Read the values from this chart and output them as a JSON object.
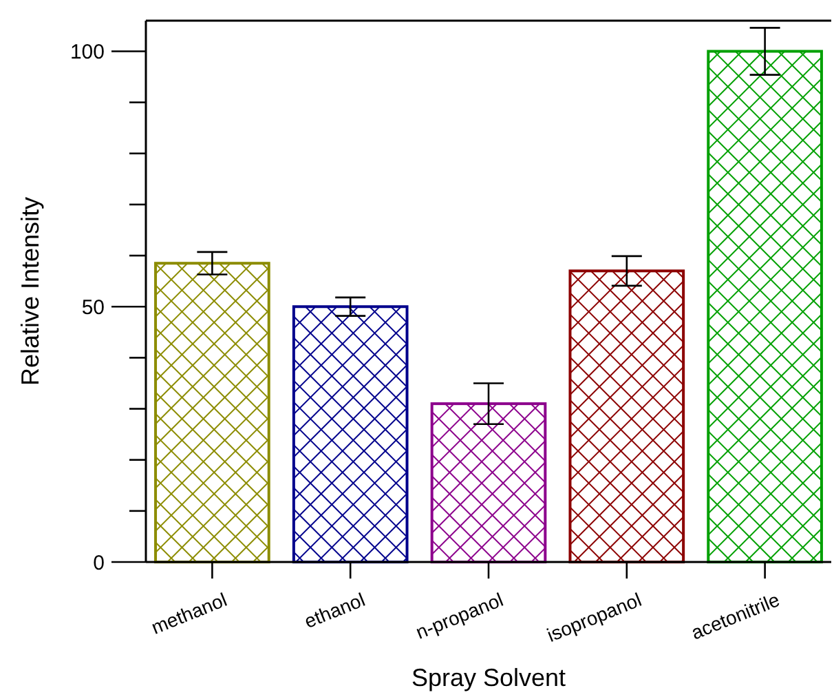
{
  "chart_data": {
    "type": "bar",
    "xlabel": "Spray Solvent",
    "ylabel": "Relative Intensity",
    "categories": [
      "methanol",
      "ethanol",
      "n-propanol",
      "isopropanol",
      "acetonitrile"
    ],
    "values": [
      58.5,
      50,
      31,
      57,
      100
    ],
    "errors": [
      2.2,
      1.8,
      4,
      2.9,
      4.6
    ],
    "colors": [
      "#8c8c00",
      "#00008c",
      "#8c008c",
      "#8c0000",
      "#00a000"
    ],
    "ylim": [
      0,
      106
    ],
    "yticks": [
      0,
      {
        "value": 10,
        "label": null
      },
      {
        "value": 20,
        "label": null
      },
      {
        "value": 30,
        "label": null
      },
      {
        "value": 40,
        "label": null
      },
      50,
      {
        "value": 60,
        "label": null
      },
      {
        "value": 70,
        "label": null
      },
      {
        "value": 80,
        "label": null
      },
      {
        "value": 90,
        "label": null
      },
      100
    ],
    "grid": false
  }
}
